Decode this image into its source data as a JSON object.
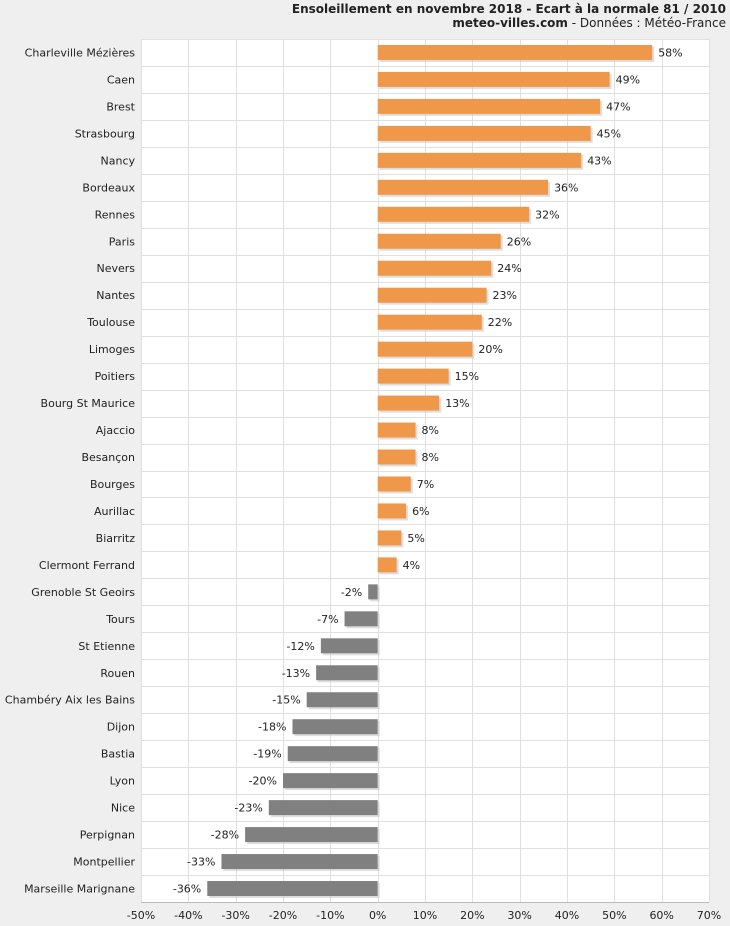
{
  "chart_data": {
    "type": "bar",
    "orientation": "horizontal",
    "title": "Ensoleillement en novembre 2018 - Ecart à la normale 81 / 2010",
    "subtitle_site": "meteo-villes.com",
    "subtitle_rest": " - Données : Météo-France",
    "categories": [
      "Charleville Mézières",
      "Caen",
      "Brest",
      "Strasbourg",
      "Nancy",
      "Bordeaux",
      "Rennes",
      "Paris",
      "Nevers",
      "Nantes",
      "Toulouse",
      "Limoges",
      "Poitiers",
      "Bourg St Maurice",
      "Ajaccio",
      "Besançon",
      "Bourges",
      "Aurillac",
      "Biarritz",
      "Clermont Ferrand",
      "Grenoble St Geoirs",
      "Tours",
      "St Etienne",
      "Rouen",
      "Chambéry Aix les Bains",
      "Dijon",
      "Bastia",
      "Lyon",
      "Nice",
      "Perpignan",
      "Montpellier",
      "Marseille Marignane"
    ],
    "values": [
      58,
      49,
      47,
      45,
      43,
      36,
      32,
      26,
      24,
      23,
      22,
      20,
      15,
      13,
      8,
      8,
      7,
      6,
      5,
      4,
      -2,
      -7,
      -12,
      -13,
      -15,
      -18,
      -19,
      -20,
      -23,
      -28,
      -33,
      -36
    ],
    "value_labels": [
      "58%",
      "49%",
      "47%",
      "45%",
      "43%",
      "36%",
      "32%",
      "26%",
      "24%",
      "23%",
      "22%",
      "20%",
      "15%",
      "13%",
      "8%",
      "8%",
      "7%",
      "6%",
      "5%",
      "4%",
      "-2%",
      "-7%",
      "-12%",
      "-13%",
      "-15%",
      "-18%",
      "-19%",
      "-20%",
      "-23%",
      "-28%",
      "-33%",
      "-36%"
    ],
    "xlim": [
      -50,
      70
    ],
    "xticks": [
      -50,
      -40,
      -30,
      -20,
      -10,
      0,
      10,
      20,
      30,
      40,
      50,
      60,
      70
    ],
    "xtick_labels": [
      "-50%",
      "-40%",
      "-30%",
      "-20%",
      "-10%",
      "0%",
      "10%",
      "20%",
      "30%",
      "40%",
      "50%",
      "60%",
      "70%"
    ],
    "grid": true,
    "colors": {
      "positive": "#f0984a",
      "negative": "#808080",
      "plot_bg": "#ffffff",
      "grid": "#e0e0e0",
      "page_bg": "#efefef"
    }
  }
}
